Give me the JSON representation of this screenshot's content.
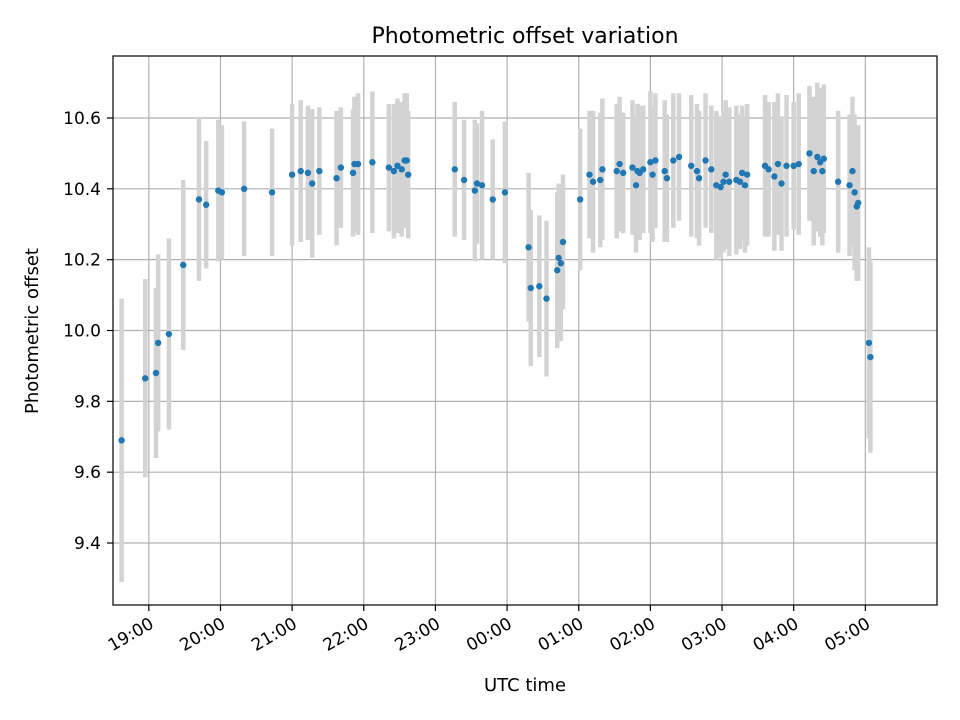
{
  "chart_data": {
    "type": "scatter",
    "title": "Photometric offset variation",
    "xlabel": "UTC time",
    "ylabel": "Photometric offset",
    "x_tick_labels": [
      "19:00",
      "20:00",
      "21:00",
      "22:00",
      "23:00",
      "00:00",
      "01:00",
      "02:00",
      "03:00",
      "04:00",
      "05:00"
    ],
    "x_tick_hours": [
      19,
      20,
      21,
      22,
      23,
      24,
      25,
      26,
      27,
      28,
      29
    ],
    "y_ticks": [
      9.4,
      9.6,
      9.8,
      10.0,
      10.2,
      10.4,
      10.6
    ],
    "y_tick_labels": [
      "9.4",
      "9.6",
      "9.8",
      "10.0",
      "10.2",
      "10.4",
      "10.6"
    ],
    "xlim_hours": [
      18.5,
      30.0
    ],
    "ylim": [
      9.225,
      10.775
    ],
    "grid": true,
    "colors": {
      "point": "#1f77b4",
      "errorbar": "#d3d3d3",
      "grid": "#b0b0b0"
    },
    "series": [
      {
        "points": [
          [
            18.62,
            9.69,
            0.4
          ],
          [
            18.95,
            9.865,
            0.28
          ],
          [
            19.1,
            9.88,
            0.24
          ],
          [
            19.13,
            9.965,
            0.25
          ],
          [
            19.28,
            9.99,
            0.27
          ],
          [
            19.48,
            10.185,
            0.24
          ],
          [
            19.7,
            10.37,
            0.23
          ],
          [
            19.8,
            10.355,
            0.18
          ],
          [
            19.97,
            10.395,
            0.2
          ],
          [
            20.02,
            10.39,
            0.19
          ],
          [
            20.33,
            10.4,
            0.19
          ],
          [
            20.72,
            10.39,
            0.18
          ],
          [
            21.0,
            10.44,
            0.2
          ],
          [
            21.12,
            10.45,
            0.2
          ],
          [
            21.22,
            10.445,
            0.19
          ],
          [
            21.28,
            10.415,
            0.21
          ],
          [
            21.38,
            10.45,
            0.18
          ],
          [
            21.62,
            10.43,
            0.19
          ],
          [
            21.68,
            10.46,
            0.17
          ],
          [
            21.85,
            10.445,
            0.18
          ],
          [
            21.87,
            10.47,
            0.19
          ],
          [
            21.92,
            10.47,
            0.2
          ],
          [
            22.12,
            10.475,
            0.2
          ],
          [
            22.35,
            10.46,
            0.18
          ],
          [
            22.42,
            10.45,
            0.19
          ],
          [
            22.47,
            10.465,
            0.19
          ],
          [
            22.53,
            10.455,
            0.19
          ],
          [
            22.57,
            10.48,
            0.19
          ],
          [
            22.6,
            10.48,
            0.19
          ],
          [
            22.62,
            10.44,
            0.18
          ],
          [
            23.27,
            10.455,
            0.19
          ],
          [
            23.4,
            10.425,
            0.17
          ],
          [
            23.55,
            10.395,
            0.2
          ],
          [
            23.58,
            10.415,
            0.17
          ],
          [
            23.65,
            10.41,
            0.21
          ],
          [
            23.8,
            10.37,
            0.17
          ],
          [
            23.97,
            10.39,
            0.2
          ],
          [
            24.3,
            10.235,
            0.21
          ],
          [
            24.33,
            10.12,
            0.22
          ],
          [
            24.45,
            10.125,
            0.2
          ],
          [
            24.55,
            10.09,
            0.22
          ],
          [
            24.7,
            10.17,
            0.22
          ],
          [
            24.72,
            10.205,
            0.21
          ],
          [
            24.75,
            10.19,
            0.22
          ],
          [
            24.78,
            10.25,
            0.19
          ],
          [
            25.02,
            10.37,
            0.2
          ],
          [
            25.15,
            10.44,
            0.18
          ],
          [
            25.2,
            10.42,
            0.2
          ],
          [
            25.3,
            10.425,
            0.19
          ],
          [
            25.33,
            10.455,
            0.2
          ],
          [
            25.53,
            10.45,
            0.19
          ],
          [
            25.57,
            10.47,
            0.19
          ],
          [
            25.62,
            10.445,
            0.17
          ],
          [
            25.75,
            10.46,
            0.19
          ],
          [
            25.8,
            10.41,
            0.19
          ],
          [
            25.82,
            10.45,
            0.19
          ],
          [
            25.85,
            10.445,
            0.19
          ],
          [
            25.9,
            10.455,
            0.18
          ],
          [
            26.0,
            10.475,
            0.2
          ],
          [
            26.03,
            10.44,
            0.19
          ],
          [
            26.07,
            10.48,
            0.19
          ],
          [
            26.2,
            10.45,
            0.2
          ],
          [
            26.23,
            10.43,
            0.18
          ],
          [
            26.32,
            10.48,
            0.19
          ],
          [
            26.4,
            10.49,
            0.18
          ],
          [
            26.57,
            10.465,
            0.2
          ],
          [
            26.65,
            10.45,
            0.19
          ],
          [
            26.68,
            10.43,
            0.19
          ],
          [
            26.77,
            10.48,
            0.19
          ],
          [
            26.85,
            10.455,
            0.18
          ],
          [
            26.92,
            10.41,
            0.21
          ],
          [
            26.98,
            10.405,
            0.2
          ],
          [
            27.02,
            10.42,
            0.2
          ],
          [
            27.05,
            10.44,
            0.21
          ],
          [
            27.1,
            10.42,
            0.21
          ],
          [
            27.2,
            10.425,
            0.21
          ],
          [
            27.25,
            10.42,
            0.19
          ],
          [
            27.28,
            10.445,
            0.19
          ],
          [
            27.32,
            10.41,
            0.19
          ],
          [
            27.35,
            10.44,
            0.2
          ],
          [
            27.6,
            10.465,
            0.2
          ],
          [
            27.65,
            10.455,
            0.19
          ],
          [
            27.73,
            10.435,
            0.21
          ],
          [
            27.78,
            10.47,
            0.2
          ],
          [
            27.83,
            10.415,
            0.19
          ],
          [
            27.9,
            10.465,
            0.2
          ],
          [
            28.0,
            10.465,
            0.18
          ],
          [
            28.07,
            10.47,
            0.2
          ],
          [
            28.22,
            10.5,
            0.19
          ],
          [
            28.28,
            10.45,
            0.21
          ],
          [
            28.33,
            10.49,
            0.21
          ],
          [
            28.37,
            10.475,
            0.21
          ],
          [
            28.4,
            10.45,
            0.21
          ],
          [
            28.42,
            10.485,
            0.21
          ],
          [
            28.62,
            10.42,
            0.2
          ],
          [
            28.78,
            10.41,
            0.2
          ],
          [
            28.82,
            10.45,
            0.21
          ],
          [
            28.85,
            10.39,
            0.22
          ],
          [
            28.88,
            10.35,
            0.21
          ],
          [
            28.9,
            10.36,
            0.22
          ],
          [
            29.05,
            9.965,
            0.27
          ],
          [
            29.07,
            9.925,
            0.27
          ]
        ]
      }
    ]
  }
}
